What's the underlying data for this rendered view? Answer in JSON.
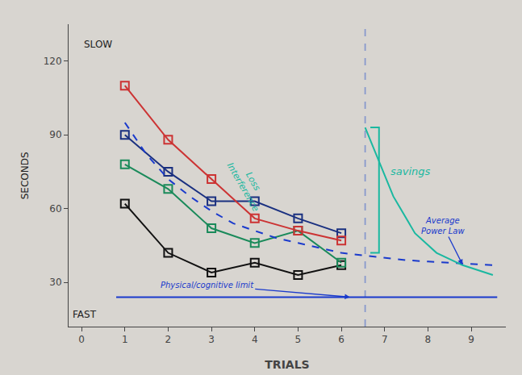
{
  "chart_data": {
    "type": "line",
    "xlabel": "TRIALS",
    "xlim": [
      -0.3,
      9.8
    ],
    "ylim": [
      12,
      135
    ],
    "xticks": [
      0,
      1,
      2,
      3,
      4,
      5,
      6,
      7,
      8,
      9
    ],
    "yticks": [
      30,
      60,
      90,
      120
    ],
    "grid": false,
    "background": "#d8d5d0",
    "series": [
      {
        "x": [
          1,
          2,
          3,
          4,
          5,
          6
        ],
        "values": [
          90,
          75,
          63,
          63,
          56,
          50
        ],
        "color": "#1a3080",
        "marker": "square-open",
        "line_style": "solid"
      },
      {
        "x": [
          1,
          2,
          3,
          4,
          5,
          6
        ],
        "values": [
          62,
          42,
          34,
          38,
          33,
          37
        ],
        "color": "#111111",
        "marker": "square-open",
        "line_style": "solid"
      },
      {
        "x": [
          1,
          2,
          3,
          4,
          5,
          6
        ],
        "values": [
          78,
          68,
          52,
          46,
          51,
          38
        ],
        "color": "#1a8a5a",
        "marker": "square-open",
        "line_style": "solid"
      },
      {
        "x": [
          1,
          2,
          3,
          4,
          5,
          6
        ],
        "values": [
          110,
          88,
          72,
          56,
          51,
          47
        ],
        "color": "#cc3333",
        "marker": "square-open",
        "line_style": "solid"
      },
      {
        "x": [
          1.0,
          1.5,
          2.0,
          2.5,
          3.0,
          3.5,
          4.0,
          4.5,
          5.0,
          5.5,
          6.0,
          6.5,
          7.0,
          7.5,
          8.0,
          8.5,
          9.0,
          9.5
        ],
        "values": [
          95,
          82,
          72,
          65,
          59,
          54,
          51,
          48,
          46,
          44,
          42,
          41,
          40,
          39,
          38.5,
          38,
          37.5,
          37
        ],
        "color": "#1a3acc",
        "line_style": "dashed"
      },
      {
        "x": [
          0.8,
          9.6
        ],
        "values": [
          24,
          24
        ],
        "color": "#1a3acc",
        "line_style": "solid"
      },
      {
        "x": [
          6.55,
          6.8,
          7.2,
          7.7,
          8.2,
          8.8,
          9.5
        ],
        "values": [
          93,
          82,
          65,
          50,
          42,
          37,
          33
        ],
        "color": "#1ab8a0",
        "line_style": "solid"
      },
      {
        "x": [
          6.67,
          6.87,
          6.87,
          6.67
        ],
        "values": [
          93,
          93,
          42,
          42
        ],
        "color": "#1ab8a0",
        "line_style": "solid"
      }
    ],
    "vlines": [
      {
        "x": 6.55,
        "color": "#8899cc",
        "line_style": "dashed"
      }
    ],
    "annotations": [
      {
        "text": "savings",
        "color": "#1ab8a0"
      },
      {
        "text": "Loss\nInterference",
        "color": "#1ab8a0"
      },
      {
        "text": "Average\nPower Law",
        "color": "#1a3acc",
        "x": 8.8,
        "y": 37.2
      },
      {
        "text": "Physical/cognitive limit",
        "color": "#1a3acc",
        "x": 6.2,
        "y": 24
      },
      {
        "text": "SLOW",
        "color": "#222222"
      },
      {
        "text": "FAST",
        "color": "#222222"
      },
      {
        "text": "SECONDS",
        "color": "#222222"
      }
    ]
  }
}
